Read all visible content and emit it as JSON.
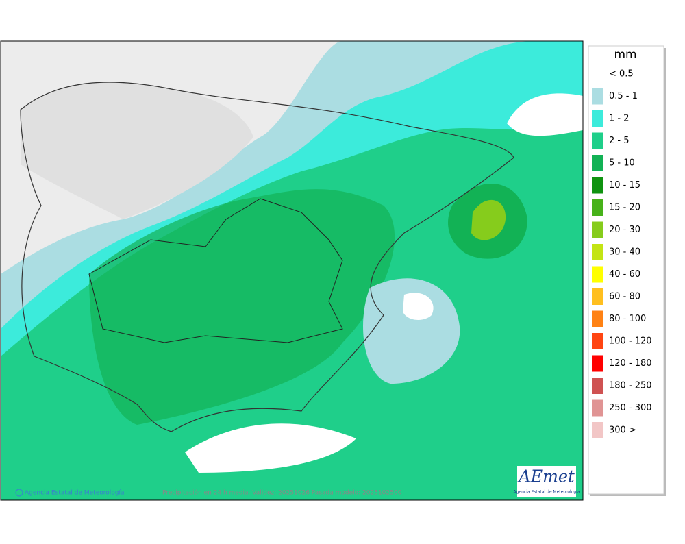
{
  "legend": {
    "title": "mm",
    "items": [
      {
        "label": "< 0.5"
      },
      {
        "label": "0.5 - 1",
        "color": "#abdde2"
      },
      {
        "label": "1 - 2",
        "color": "#3cebdb"
      },
      {
        "label": "2 - 5",
        "color": "#1fcf8a"
      },
      {
        "label": "5 - 10",
        "color": "#12b255"
      },
      {
        "label": "10 - 15",
        "color": "#0f9310"
      },
      {
        "label": "15 - 20",
        "color": "#47b21a"
      },
      {
        "label": "20 - 30",
        "color": "#86cc1c"
      },
      {
        "label": "30 - 40",
        "color": "#c3e414"
      },
      {
        "label": "40 - 60",
        "color": "#ffff00"
      },
      {
        "label": "60 - 80",
        "color": "#ffbf1f"
      },
      {
        "label": "80 - 100",
        "color": "#ff8214"
      },
      {
        "label": "100 - 120",
        "color": "#ff4512"
      },
      {
        "label": "120 - 180",
        "color": "#ff0000"
      },
      {
        "label": "180 - 250",
        "color": "#cf5252"
      },
      {
        "label": "250 - 300",
        "color": "#e09494"
      },
      {
        "label": "300 >",
        "color": "#f2c6c6"
      }
    ]
  },
  "footer": {
    "agency": "Agencia Estatal de Meteorología",
    "caption": "Precipitación en 24 h media. Validez: 20251026 Pasada modelo: 2025102500"
  },
  "logo": {
    "name": "AEmet",
    "subtitle": "Agencia Estatal de Meteorología"
  }
}
